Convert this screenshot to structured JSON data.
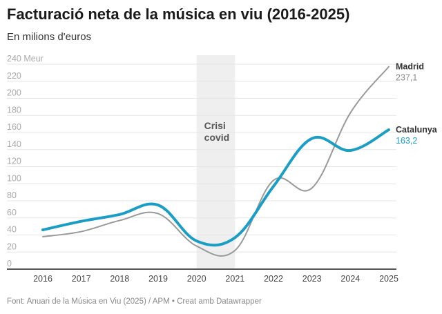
{
  "title": "Facturació neta de la música en viu (2016-2025)",
  "subtitle": "En milions d'euros",
  "footer": "Font: Anuari de la Música en Viu (2025) / APM • Creat amb Datawrapper",
  "chart_data": {
    "type": "line",
    "title": "Facturació neta de la música en viu (2016-2025)",
    "ylabel": "En milions d'euros",
    "x": [
      2016,
      2017,
      2018,
      2019,
      2020,
      2021,
      2022,
      2023,
      2024,
      2025
    ],
    "ylim": [
      0,
      240
    ],
    "yticks": [
      "0",
      "20",
      "40",
      "60",
      "80",
      "100",
      "120",
      "140",
      "160",
      "180",
      "200",
      "220",
      "240 Meur"
    ],
    "grid": true,
    "annotation": {
      "label_line1": "Crisi",
      "label_line2": "covid",
      "from": 2020,
      "to": 2021
    },
    "series": [
      {
        "name": "Madrid",
        "color": "#999999",
        "end_label": "237,1",
        "values": [
          38,
          44,
          57,
          65,
          27,
          22,
          104,
          95,
          183,
          237.1
        ]
      },
      {
        "name": "Catalunya",
        "color": "#1a9ec5",
        "end_label": "163,2",
        "values": [
          46,
          56,
          64,
          75,
          33,
          37,
          97,
          153,
          139,
          163.2
        ]
      }
    ]
  }
}
